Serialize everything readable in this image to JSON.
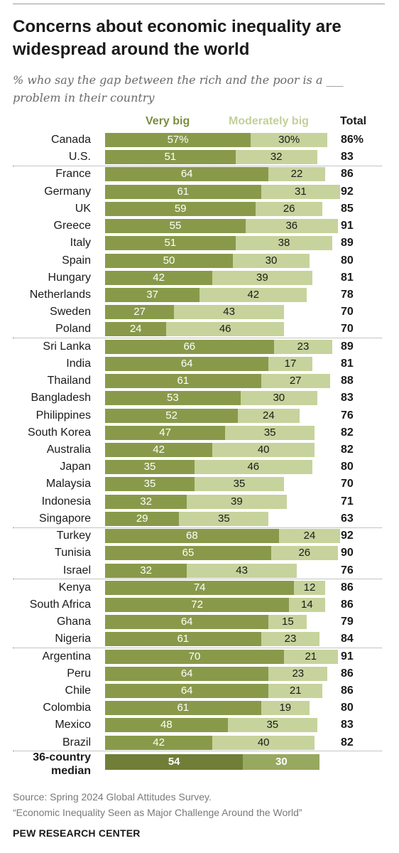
{
  "header": {
    "title": "Concerns about economic inequality are widespread around the world",
    "subtitle": "% who say the gap between the rich and the poor is a ___ problem in their country"
  },
  "colors": {
    "very_big": "#889a4a",
    "moderately_big": "#c6d39c",
    "median_very_big": "#6f7f38",
    "median_moderately_big": "#97a860"
  },
  "legend": {
    "very_big": "Very big",
    "moderately_big": "Moderately big",
    "total": "Total"
  },
  "median": {
    "label": "36-country median",
    "very_big": 54,
    "moderately_big": 30
  },
  "source": {
    "line1": "Source: Spring 2024 Global Attitudes Survey.",
    "line2": "“Economic Inequality Seen as Major Challenge Around the World”"
  },
  "footer": "PEW RESEARCH CENTER",
  "chart_data": {
    "type": "bar",
    "orientation": "horizontal",
    "stacked": true,
    "title": "Concerns about economic inequality are widespread around the world",
    "subtitle": "% who say the gap between the rich and the poor is a ___ problem in their country",
    "series_names": [
      "Very big",
      "Moderately big"
    ],
    "groups": [
      {
        "rows": [
          {
            "country": "Canada",
            "very_big": 57,
            "moderately_big": 30,
            "total": 86,
            "vb_label": "57%",
            "mb_label": "30%",
            "total_label": "86%"
          },
          {
            "country": "U.S.",
            "very_big": 51,
            "moderately_big": 32,
            "total": 83,
            "vb_label": "51",
            "mb_label": "32",
            "total_label": "83"
          }
        ]
      },
      {
        "rows": [
          {
            "country": "France",
            "very_big": 64,
            "moderately_big": 22,
            "total": 86,
            "vb_label": "64",
            "mb_label": "22",
            "total_label": "86"
          },
          {
            "country": "Germany",
            "very_big": 61,
            "moderately_big": 31,
            "total": 92,
            "vb_label": "61",
            "mb_label": "31",
            "total_label": "92"
          },
          {
            "country": "UK",
            "very_big": 59,
            "moderately_big": 26,
            "total": 85,
            "vb_label": "59",
            "mb_label": "26",
            "total_label": "85"
          },
          {
            "country": "Greece",
            "very_big": 55,
            "moderately_big": 36,
            "total": 91,
            "vb_label": "55",
            "mb_label": "36",
            "total_label": "91"
          },
          {
            "country": "Italy",
            "very_big": 51,
            "moderately_big": 38,
            "total": 89,
            "vb_label": "51",
            "mb_label": "38",
            "total_label": "89"
          },
          {
            "country": "Spain",
            "very_big": 50,
            "moderately_big": 30,
            "total": 80,
            "vb_label": "50",
            "mb_label": "30",
            "total_label": "80"
          },
          {
            "country": "Hungary",
            "very_big": 42,
            "moderately_big": 39,
            "total": 81,
            "vb_label": "42",
            "mb_label": "39",
            "total_label": "81"
          },
          {
            "country": "Netherlands",
            "very_big": 37,
            "moderately_big": 42,
            "total": 78,
            "vb_label": "37",
            "mb_label": "42",
            "total_label": "78"
          },
          {
            "country": "Sweden",
            "very_big": 27,
            "moderately_big": 43,
            "total": 70,
            "vb_label": "27",
            "mb_label": "43",
            "total_label": "70"
          },
          {
            "country": "Poland",
            "very_big": 24,
            "moderately_big": 46,
            "total": 70,
            "vb_label": "24",
            "mb_label": "46",
            "total_label": "70"
          }
        ]
      },
      {
        "rows": [
          {
            "country": "Sri Lanka",
            "very_big": 66,
            "moderately_big": 23,
            "total": 89,
            "vb_label": "66",
            "mb_label": "23",
            "total_label": "89"
          },
          {
            "country": "India",
            "very_big": 64,
            "moderately_big": 17,
            "total": 81,
            "vb_label": "64",
            "mb_label": "17",
            "total_label": "81"
          },
          {
            "country": "Thailand",
            "very_big": 61,
            "moderately_big": 27,
            "total": 88,
            "vb_label": "61",
            "mb_label": "27",
            "total_label": "88"
          },
          {
            "country": "Bangladesh",
            "very_big": 53,
            "moderately_big": 30,
            "total": 83,
            "vb_label": "53",
            "mb_label": "30",
            "total_label": "83"
          },
          {
            "country": "Philippines",
            "very_big": 52,
            "moderately_big": 24,
            "total": 76,
            "vb_label": "52",
            "mb_label": "24",
            "total_label": "76"
          },
          {
            "country": "South Korea",
            "very_big": 47,
            "moderately_big": 35,
            "total": 82,
            "vb_label": "47",
            "mb_label": "35",
            "total_label": "82"
          },
          {
            "country": "Australia",
            "very_big": 42,
            "moderately_big": 40,
            "total": 82,
            "vb_label": "42",
            "mb_label": "40",
            "total_label": "82"
          },
          {
            "country": "Japan",
            "very_big": 35,
            "moderately_big": 46,
            "total": 80,
            "vb_label": "35",
            "mb_label": "46",
            "total_label": "80"
          },
          {
            "country": "Malaysia",
            "very_big": 35,
            "moderately_big": 35,
            "total": 70,
            "vb_label": "35",
            "mb_label": "35",
            "total_label": "70"
          },
          {
            "country": "Indonesia",
            "very_big": 32,
            "moderately_big": 39,
            "total": 71,
            "vb_label": "32",
            "mb_label": "39",
            "total_label": "71"
          },
          {
            "country": "Singapore",
            "very_big": 29,
            "moderately_big": 35,
            "total": 63,
            "vb_label": "29",
            "mb_label": "35",
            "total_label": "63"
          }
        ]
      },
      {
        "rows": [
          {
            "country": "Turkey",
            "very_big": 68,
            "moderately_big": 24,
            "total": 92,
            "vb_label": "68",
            "mb_label": "24",
            "total_label": "92"
          },
          {
            "country": "Tunisia",
            "very_big": 65,
            "moderately_big": 26,
            "total": 90,
            "vb_label": "65",
            "mb_label": "26",
            "total_label": "90"
          },
          {
            "country": "Israel",
            "very_big": 32,
            "moderately_big": 43,
            "total": 76,
            "vb_label": "32",
            "mb_label": "43",
            "total_label": "76"
          }
        ]
      },
      {
        "rows": [
          {
            "country": "Kenya",
            "very_big": 74,
            "moderately_big": 12,
            "total": 86,
            "vb_label": "74",
            "mb_label": "12",
            "total_label": "86"
          },
          {
            "country": "South Africa",
            "very_big": 72,
            "moderately_big": 14,
            "total": 86,
            "vb_label": "72",
            "mb_label": "14",
            "total_label": "86"
          },
          {
            "country": "Ghana",
            "very_big": 64,
            "moderately_big": 15,
            "total": 79,
            "vb_label": "64",
            "mb_label": "15",
            "total_label": "79"
          },
          {
            "country": "Nigeria",
            "very_big": 61,
            "moderately_big": 23,
            "total": 84,
            "vb_label": "61",
            "mb_label": "23",
            "total_label": "84"
          }
        ]
      },
      {
        "rows": [
          {
            "country": "Argentina",
            "very_big": 70,
            "moderately_big": 21,
            "total": 91,
            "vb_label": "70",
            "mb_label": "21",
            "total_label": "91"
          },
          {
            "country": "Peru",
            "very_big": 64,
            "moderately_big": 23,
            "total": 86,
            "vb_label": "64",
            "mb_label": "23",
            "total_label": "86"
          },
          {
            "country": "Chile",
            "very_big": 64,
            "moderately_big": 21,
            "total": 86,
            "vb_label": "64",
            "mb_label": "21",
            "total_label": "86"
          },
          {
            "country": "Colombia",
            "very_big": 61,
            "moderately_big": 19,
            "total": 80,
            "vb_label": "61",
            "mb_label": "19",
            "total_label": "80"
          },
          {
            "country": "Mexico",
            "very_big": 48,
            "moderately_big": 35,
            "total": 83,
            "vb_label": "48",
            "mb_label": "35",
            "total_label": "83"
          },
          {
            "country": "Brazil",
            "very_big": 42,
            "moderately_big": 40,
            "total": 82,
            "vb_label": "42",
            "mb_label": "40",
            "total_label": "82"
          }
        ]
      }
    ]
  }
}
